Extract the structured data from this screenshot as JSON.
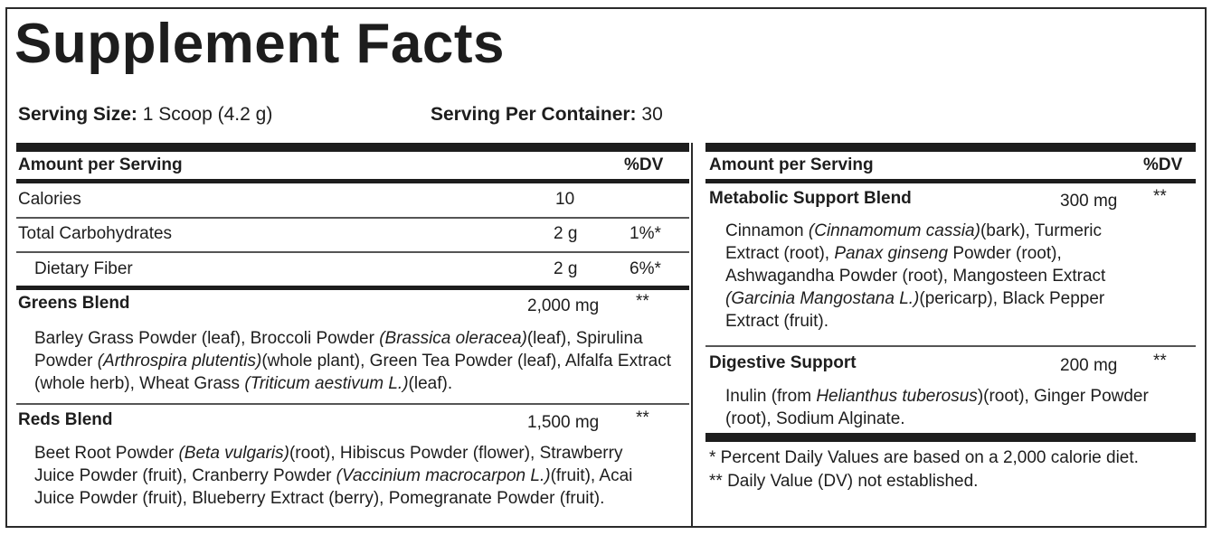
{
  "title": "Supplement Facts",
  "serving": {
    "size_label": "Serving Size:",
    "size_value": " 1 Scoop (4.2 g)",
    "container_label": "Serving Per Container:",
    "container_value": " 30"
  },
  "left": {
    "header_amount": "Amount per Serving",
    "header_dv": "%DV",
    "calories": {
      "label": "Calories",
      "amount": "10",
      "dv": ""
    },
    "carbs": {
      "label": "Total Carbohydrates",
      "amount": "2 g",
      "dv": "1%*"
    },
    "fiber": {
      "label": "Dietary Fiber",
      "amount": "2 g",
      "dv": "6%*"
    },
    "greens": {
      "label": "Greens Blend",
      "amount": "2,000 mg",
      "dv": "**",
      "parts": [
        {
          "t": "Barley Grass Powder (leaf), Broccoli Powder ",
          "i": false
        },
        {
          "t": "(Brassica oleracea)",
          "i": true
        },
        {
          "t": "(leaf), Spirulina Powder ",
          "i": false
        },
        {
          "t": "(Arthrospira plutentis)",
          "i": true
        },
        {
          "t": "(whole plant), Green Tea Powder (leaf), Alfalfa Extract (whole herb), Wheat Grass ",
          "i": false
        },
        {
          "t": "(Triticum aestivum L.)",
          "i": true
        },
        {
          "t": "(leaf).",
          "i": false
        }
      ]
    },
    "reds": {
      "label": "Reds Blend",
      "amount": "1,500 mg",
      "dv": "**",
      "parts": [
        {
          "t": "Beet Root Powder ",
          "i": false
        },
        {
          "t": "(Beta vulgaris)",
          "i": true
        },
        {
          "t": "(root), Hibiscus Powder (flower), Strawberry Juice Powder (fruit), Cranberry Powder ",
          "i": false
        },
        {
          "t": "(Vaccinium macrocarpon L.)",
          "i": true
        },
        {
          "t": "(fruit), Acai Juice Powder (fruit), Blueberry Extract (berry), Pomegranate Powder (fruit).",
          "i": false
        }
      ]
    }
  },
  "right": {
    "header_amount": "Amount per Serving",
    "header_dv": "%DV",
    "metabolic": {
      "label": "Metabolic Support Blend",
      "amount": "300 mg",
      "dv": "**",
      "parts": [
        {
          "t": "Cinnamon ",
          "i": false
        },
        {
          "t": "(Cinnamomum cassia)",
          "i": true
        },
        {
          "t": "(bark), Turmeric Extract (root), ",
          "i": false
        },
        {
          "t": "Panax ginseng",
          "i": true
        },
        {
          "t": " Powder (root), Ashwagandha Powder (root), Mangosteen Extract ",
          "i": false
        },
        {
          "t": "(Garcinia Mangostana L.)",
          "i": true
        },
        {
          "t": "(pericarp), Black Pepper Extract (fruit).",
          "i": false
        }
      ]
    },
    "digestive": {
      "label": "Digestive Support",
      "amount": "200 mg",
      "dv": "**",
      "parts": [
        {
          "t": "Inulin (from ",
          "i": false
        },
        {
          "t": "Helianthus tuberosus",
          "i": true
        },
        {
          "t": ")(root), Ginger Powder (root), Sodium Alginate.",
          "i": false
        }
      ]
    },
    "footnote1": " * Percent Daily Values are based on a 2,000 calorie diet.",
    "footnote2": "** Daily Value (DV) not established."
  }
}
